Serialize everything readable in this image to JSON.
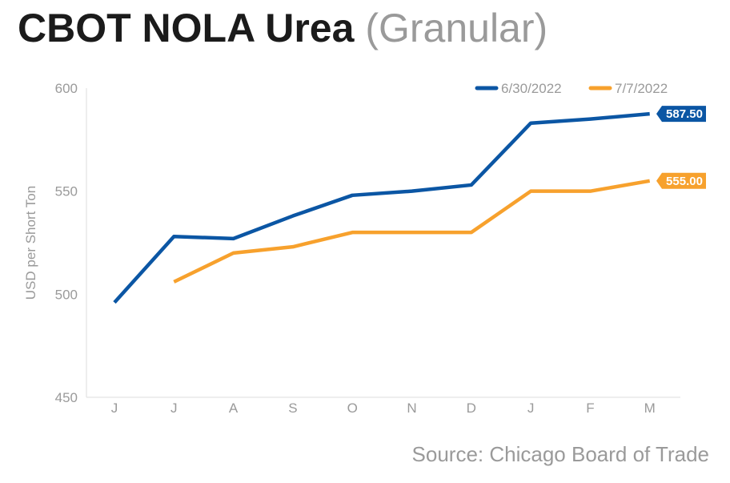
{
  "title": {
    "main": "CBOT NOLA Urea",
    "sub": "(Granular)"
  },
  "source": "Source: Chicago Board of Trade",
  "chart_data": {
    "type": "line",
    "ylabel": "USD per Short Ton",
    "xlabel": "",
    "ylim": [
      450,
      600
    ],
    "yticks": [
      450,
      500,
      550,
      600
    ],
    "categories": [
      "J",
      "J",
      "A",
      "S",
      "O",
      "N",
      "D",
      "J",
      "F",
      "M"
    ],
    "legend_position": "top-right",
    "grid": false,
    "series": [
      {
        "name": "6/30/2022",
        "color": "#0b56a4",
        "values": [
          496,
          528,
          527,
          538,
          548,
          550,
          553,
          583,
          585,
          587.5
        ],
        "end_label": "587.50"
      },
      {
        "name": "7/7/2022",
        "color": "#f7a12d",
        "values": [
          null,
          506,
          520,
          523,
          530,
          530,
          530,
          550,
          550,
          555
        ],
        "end_label": "555.00"
      }
    ]
  }
}
